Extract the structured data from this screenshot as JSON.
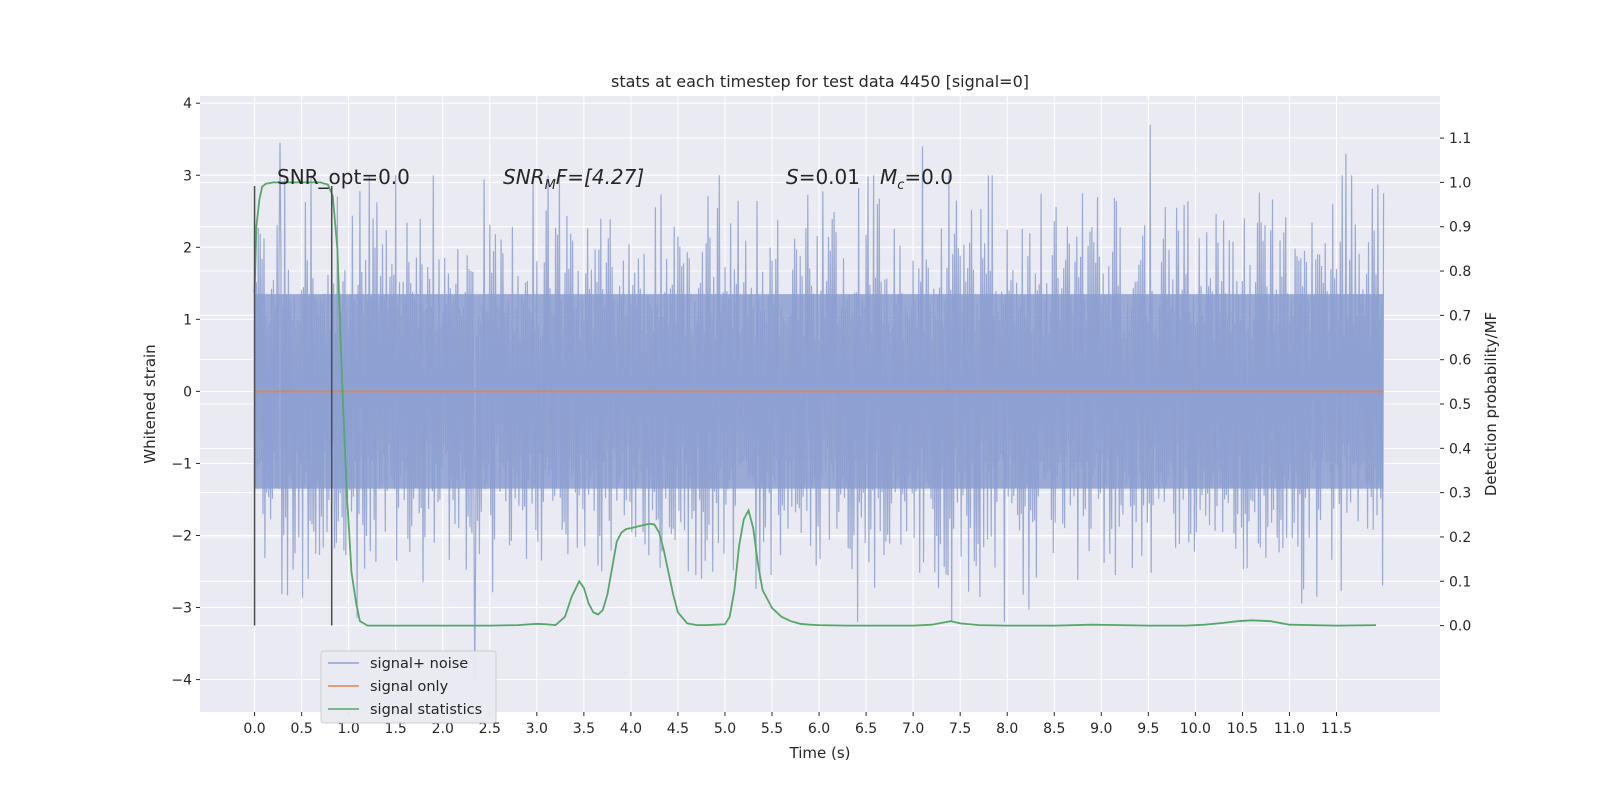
{
  "chart_data": {
    "type": "line",
    "title": "stats at each timestep for test data 4450 [signal=0]",
    "xlabel": "Time (s)",
    "ylabel_left": "Whitened strain",
    "ylabel_right": "Detection probability/MF",
    "xlim": [
      -0.58,
      12.6
    ],
    "ylim_left": [
      -4.45,
      4.1
    ],
    "ylim_right": [
      -0.195,
      1.195
    ],
    "x_ticks": [
      0.0,
      0.5,
      1.0,
      1.5,
      2.0,
      2.5,
      3.0,
      3.5,
      4.0,
      4.5,
      5.0,
      5.5,
      6.0,
      6.5,
      7.0,
      7.5,
      8.0,
      8.5,
      9.0,
      9.5,
      10.0,
      10.5,
      11.0,
      11.5
    ],
    "x_tick_labels": [
      "0.0",
      "0.5",
      "1.0",
      "1.5",
      "2.0",
      "2.5",
      "3.0",
      "3.5",
      "4.0",
      "4.5",
      "5.0",
      "5.5",
      "6.0",
      "6.5",
      "7.0",
      "7.5",
      "8.0",
      "8.5",
      "9.0",
      "9.5",
      "10.0",
      "10.5",
      "11.0",
      "11.5"
    ],
    "y_left_ticks": [
      4,
      3,
      2,
      1,
      0,
      -1,
      -2,
      -3,
      -4
    ],
    "y_left_tick_labels": [
      "4",
      "3",
      "2",
      "1",
      "0",
      "−1",
      "−2",
      "−3",
      "−4"
    ],
    "y_right_ticks": [
      1.1,
      1.0,
      0.9,
      0.8,
      0.7,
      0.6,
      0.5,
      0.4,
      0.3,
      0.2,
      0.1,
      0.0
    ],
    "y_right_tick_labels": [
      "1.1",
      "1.0",
      "0.9",
      "0.8",
      "0.7",
      "0.6",
      "0.5",
      "0.4",
      "0.3",
      "0.2",
      "0.1",
      "0.0"
    ],
    "grid": true,
    "legend_position": "lower-left",
    "annotations": {
      "snr_opt": "SNR_opt=0.0",
      "snr_mf_main": "SNR",
      "snr_mf_sub": "M",
      "snr_mf_rest": "F=[4.27]",
      "s_main": "S",
      "s_rest": "=0.01",
      "mc_main": "M",
      "mc_sub": "c",
      "mc_rest": "=0.0"
    },
    "series": [
      {
        "name": "signal+ noise",
        "color": "#8c9fd0",
        "axis": "left",
        "kind": "noise",
        "x_range": [
          0.0,
          12.0
        ],
        "typical_abs_max": 2.3,
        "extreme_peaks": [
          {
            "x": 0.27,
            "y": 3.45
          },
          {
            "x": 9.52,
            "y": 3.7
          },
          {
            "x": 2.34,
            "y": -4.05
          },
          {
            "x": 7.1,
            "y": 3.4
          },
          {
            "x": 11.6,
            "y": 3.3
          }
        ]
      },
      {
        "name": "signal only",
        "color": "#dd8452",
        "axis": "left",
        "kind": "line",
        "x": [
          0.0,
          12.0
        ],
        "y": [
          0.0,
          0.0
        ]
      },
      {
        "name": "signal statistics",
        "color": "#55a868",
        "axis": "right",
        "kind": "line",
        "x": [
          0.0,
          0.02,
          0.05,
          0.08,
          0.12,
          0.2,
          0.3,
          0.5,
          0.7,
          0.78,
          0.83,
          0.88,
          0.93,
          0.98,
          1.03,
          1.08,
          1.12,
          1.2,
          1.5,
          2.0,
          2.5,
          2.8,
          3.0,
          3.1,
          3.2,
          3.3,
          3.37,
          3.45,
          3.5,
          3.55,
          3.6,
          3.65,
          3.7,
          3.75,
          3.8,
          3.85,
          3.9,
          3.95,
          4.0,
          4.1,
          4.2,
          4.25,
          4.3,
          4.35,
          4.4,
          4.45,
          4.5,
          4.6,
          4.7,
          4.8,
          4.9,
          5.0,
          5.05,
          5.1,
          5.15,
          5.2,
          5.25,
          5.3,
          5.35,
          5.4,
          5.5,
          5.6,
          5.7,
          5.8,
          5.9,
          6.0,
          6.3,
          6.7,
          7.0,
          7.2,
          7.3,
          7.4,
          7.5,
          7.7,
          8.0,
          8.5,
          8.9,
          9.2,
          9.5,
          9.9,
          10.1,
          10.3,
          10.45,
          10.6,
          10.8,
          11.0,
          11.5,
          11.92
        ],
        "y": [
          0.75,
          0.9,
          0.96,
          0.99,
          0.997,
          1.0,
          1.0,
          1.0,
          1.0,
          0.995,
          0.97,
          0.85,
          0.55,
          0.3,
          0.12,
          0.05,
          0.01,
          0.0,
          0.0,
          0.0,
          0.0,
          0.001,
          0.004,
          0.003,
          0.001,
          0.02,
          0.065,
          0.1,
          0.085,
          0.05,
          0.03,
          0.025,
          0.035,
          0.07,
          0.13,
          0.19,
          0.21,
          0.218,
          0.22,
          0.225,
          0.23,
          0.228,
          0.21,
          0.17,
          0.12,
          0.07,
          0.03,
          0.005,
          0.001,
          0.001,
          0.002,
          0.003,
          0.02,
          0.08,
          0.18,
          0.24,
          0.26,
          0.22,
          0.14,
          0.08,
          0.04,
          0.02,
          0.01,
          0.004,
          0.002,
          0.001,
          0.0,
          0.0,
          0.0,
          0.002,
          0.006,
          0.01,
          0.005,
          0.001,
          0.0,
          0.0,
          0.002,
          0.001,
          0.0,
          0.0,
          0.002,
          0.006,
          0.01,
          0.012,
          0.01,
          0.002,
          0.0,
          0.001
        ]
      }
    ],
    "vertical_markers": [
      {
        "x": 0.0,
        "y": [
          -3.25,
          2.85
        ],
        "color": "#4d4d4d",
        "axis": "left"
      },
      {
        "x": 0.82,
        "y": [
          -3.25,
          2.85
        ],
        "color": "#4d4d4d",
        "axis": "left"
      }
    ]
  }
}
